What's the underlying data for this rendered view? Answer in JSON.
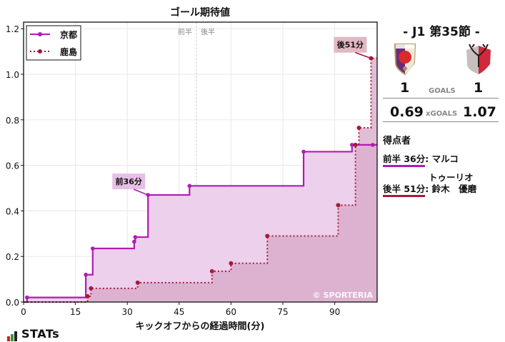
{
  "chart_data": {
    "type": "line",
    "subtype": "step-area",
    "title": "ゴール期待値",
    "xlabel": "キックオフからの経過時間(分)",
    "ylabel": "",
    "xlim": [
      0,
      101
    ],
    "ylim": [
      0,
      1.22
    ],
    "xticks": [
      0,
      15,
      30,
      45,
      60,
      75,
      90
    ],
    "yticks": [
      0.0,
      0.2,
      0.4,
      0.6,
      0.8,
      1.0,
      1.2
    ],
    "ytick_labels": [
      "0.0",
      "0.2",
      "0.4",
      "0.6",
      "0.8",
      "1.0",
      "1.2"
    ],
    "grid": true,
    "legend_position": "upper left",
    "half_divider": {
      "x": 50,
      "left_label": "前半",
      "right_label": "後半"
    },
    "watermark": "© SPORTERIA",
    "series": [
      {
        "name": "京都",
        "color": "#b01cb0",
        "fill": "#ecd0ec",
        "line_style": "solid",
        "x": [
          0,
          1,
          18,
          20,
          32,
          32.3,
          36,
          48,
          81,
          95,
          96,
          101
        ],
        "values": [
          0,
          0.02,
          0.12,
          0.235,
          0.265,
          0.285,
          0.47,
          0.51,
          0.66,
          0.69,
          0.69,
          0.69
        ]
      },
      {
        "name": "鹿島",
        "color": "#a8183a",
        "fill": "#dca6c4",
        "line_style": "dotted",
        "x": [
          0,
          18.5,
          19.5,
          33,
          54.5,
          60,
          70.5,
          91,
          96,
          97,
          100.5
        ],
        "values": [
          0,
          0.025,
          0.06,
          0.085,
          0.135,
          0.17,
          0.29,
          0.425,
          0.69,
          0.765,
          1.07
        ]
      }
    ],
    "annotations": [
      {
        "text": "前36分",
        "x": 36,
        "y": 0.47,
        "series": "京都"
      },
      {
        "text": "後51分",
        "x": 100.5,
        "y": 1.07,
        "series": "鹿島"
      }
    ]
  },
  "sidebar": {
    "round_title": "-  J1 第35節  -",
    "home_logo": "kyoto-sanga-crest",
    "away_logo": "kashima-antlers-crest",
    "goals": {
      "home": "1",
      "label": "GOALS",
      "away": "1"
    },
    "xgoals": {
      "home": "0.69",
      "label": "xGOALS",
      "away": "1.07"
    },
    "scorers_title": "得点者",
    "scorers": [
      {
        "time": "前半 36分",
        "name": "マルコ",
        "name2": "トゥーリオ",
        "color": "#b01cb0"
      },
      {
        "time": "後半 51分",
        "name": "鈴木　優磨",
        "name2": "",
        "color": "#a8183a"
      }
    ]
  },
  "footer": {
    "brand": "STATs",
    "brand_bar_colors": [
      "#d32020",
      "#2ca02c",
      "#222222"
    ]
  }
}
